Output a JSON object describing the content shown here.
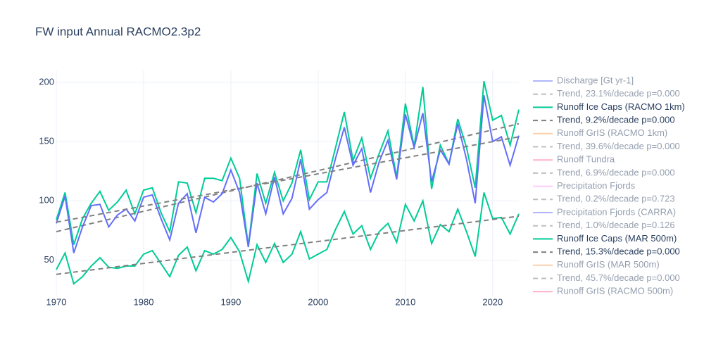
{
  "chart_data": {
    "type": "line",
    "title": "FW input Annual RACMO2.3p2",
    "x": [
      1970,
      1971,
      1972,
      1973,
      1974,
      1975,
      1976,
      1977,
      1978,
      1979,
      1980,
      1981,
      1982,
      1983,
      1984,
      1985,
      1986,
      1987,
      1988,
      1989,
      1990,
      1991,
      1992,
      1993,
      1994,
      1995,
      1996,
      1997,
      1998,
      1999,
      2000,
      2001,
      2002,
      2003,
      2004,
      2005,
      2006,
      2007,
      2008,
      2009,
      2010,
      2011,
      2012,
      2013,
      2014,
      2015,
      2016,
      2017,
      2018,
      2019,
      2020,
      2021,
      2022,
      2023
    ],
    "xlim": [
      1970,
      2023
    ],
    "xticks": [
      1970,
      1980,
      1990,
      2000,
      2010,
      2020
    ],
    "ylim": [
      20,
      210
    ],
    "yticks": [
      50,
      100,
      150,
      200
    ],
    "grid": true,
    "series": [
      {
        "name": "Discharge [Gt yr-1]",
        "color": "#636efa",
        "visible": false
      },
      {
        "name": "Trend, 23.1%/decade  p=0.000",
        "color": "#808080",
        "dash": true,
        "visible": false
      },
      {
        "name": "Runoff Ice Caps (RACMO 1km)",
        "color": "#00cc96",
        "visible": true,
        "values": [
          84,
          107,
          63,
          85,
          98,
          108,
          92,
          99,
          109,
          89,
          109,
          111,
          90,
          74,
          116,
          115,
          90,
          119,
          119,
          117,
          136,
          119,
          62,
          123,
          98,
          124,
          100,
          115,
          143,
          101,
          116,
          116,
          145,
          175,
          134,
          153,
          119,
          140,
          159,
          120,
          182,
          146,
          196,
          110,
          147,
          131,
          169,
          145,
          111,
          201,
          168,
          172,
          147,
          177
        ]
      },
      {
        "name": "Trend, 9.2%/decade  p=0.000",
        "color": "#808080",
        "dash": true,
        "visible": true,
        "x": [
          1970,
          2023
        ],
        "values": [
          74,
          165
        ]
      },
      {
        "name": "Runoff GrIS (RACMO 1km)",
        "color": "#ffa15a",
        "visible": false
      },
      {
        "name": "Trend, 39.6%/decade  p=0.000",
        "color": "#808080",
        "dash": true,
        "visible": false
      },
      {
        "name": "Runoff Tundra",
        "color": "#ff6692",
        "visible": false
      },
      {
        "name": "Trend, 6.9%/decade  p=0.000",
        "color": "#808080",
        "dash": true,
        "visible": false
      },
      {
        "name": "Precipitation Fjords",
        "color": "#ff97ff",
        "visible": false
      },
      {
        "name": "Trend, 0.2%/decade  p=0.723",
        "color": "#808080",
        "dash": true,
        "visible": false
      },
      {
        "name": "Precipitation Fjords (CARRA)",
        "color": "#636efa",
        "visible": false
      },
      {
        "name": "Trend, 1.0%/decade  p=0.126",
        "color": "#808080",
        "dash": true,
        "visible": false
      },
      {
        "name": "Runoff Ice Caps (MAR 500m)",
        "color": "#00cc96",
        "visible": true,
        "values": [
          42,
          56,
          30,
          36,
          45,
          52,
          44,
          43,
          45,
          45,
          55,
          58,
          47,
          36,
          54,
          61,
          41,
          58,
          55,
          59,
          69,
          57,
          32,
          63,
          48,
          64,
          48,
          55,
          74,
          51,
          55,
          59,
          76,
          91,
          72,
          79,
          59,
          74,
          81,
          65,
          97,
          83,
          100,
          64,
          80,
          74,
          93,
          74,
          53,
          107,
          85,
          86,
          72,
          89
        ]
      },
      {
        "name": "Trend, 15.3%/decade  p=0.000",
        "color": "#808080",
        "dash": true,
        "visible": true,
        "x": [
          1970,
          2023
        ],
        "values": [
          38,
          87
        ]
      },
      {
        "name": "Runoff GrIS (MAR 500m)",
        "color": "#ffa15a",
        "visible": false
      },
      {
        "name": "Trend, 45.7%/decade  p=0.000",
        "color": "#808080",
        "dash": true,
        "visible": false
      },
      {
        "name": "Runoff GrIS (RACMO 500m)",
        "color": "#ff6692",
        "visible": false
      },
      {
        "color": "#636efa",
        "visible": true,
        "values": [
          81,
          104,
          56,
          78,
          96,
          97,
          78,
          88,
          93,
          83,
          103,
          105,
          85,
          67,
          98,
          106,
          73,
          103,
          99,
          106,
          126,
          107,
          61,
          115,
          89,
          120,
          89,
          102,
          135,
          93,
          101,
          107,
          136,
          162,
          130,
          144,
          107,
          133,
          151,
          118,
          173,
          145,
          174,
          116,
          143,
          131,
          165,
          135,
          98,
          189,
          150,
          154,
          130,
          155
        ]
      },
      {
        "color": "#808080",
        "dash": true,
        "visible": true,
        "x": [
          1970,
          2023
        ],
        "values": [
          82,
          154
        ]
      }
    ]
  }
}
